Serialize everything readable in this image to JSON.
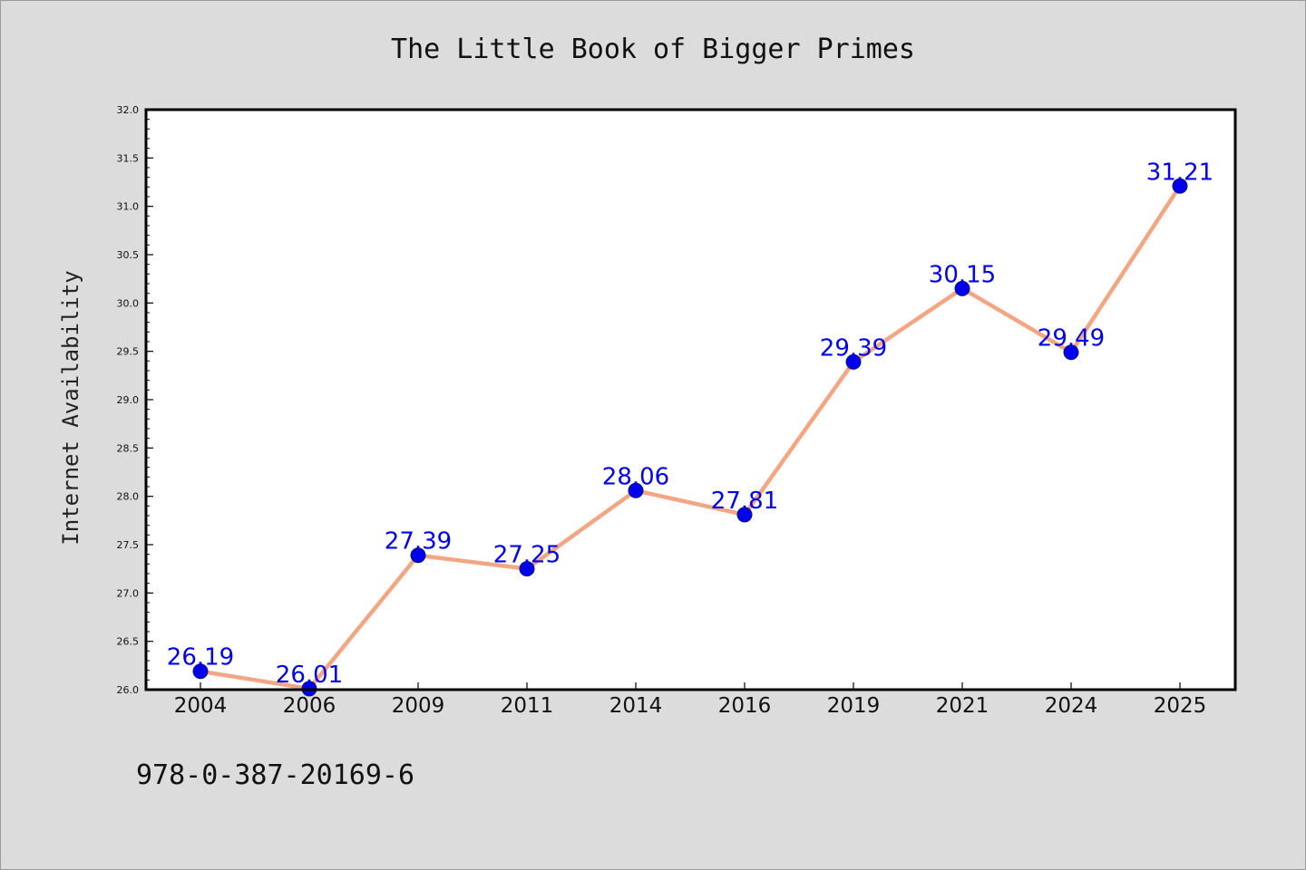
{
  "chart_data": {
    "type": "line",
    "title": "The Little Book of Bigger Primes",
    "xlabel": "",
    "ylabel": "Internet Availability",
    "categories": [
      "2004",
      "2006",
      "2009",
      "2011",
      "2014",
      "2016",
      "2019",
      "2021",
      "2024",
      "2025"
    ],
    "series": [
      {
        "values": [
          26.19,
          26.01,
          27.39,
          27.25,
          28.06,
          27.81,
          29.39,
          30.15,
          29.49,
          31.21
        ],
        "labels": [
          "26.19",
          "26.01",
          "27.39",
          "27.25",
          "28.06",
          "27.81",
          "29.39",
          "30.15",
          "29.49",
          "31.21"
        ],
        "line_color": "#f4a582",
        "marker_color": "#0000ee"
      }
    ],
    "ylim": [
      26.0,
      32.0
    ],
    "yticks": [
      "26.0",
      "26.5",
      "27.0",
      "27.5",
      "28.0",
      "28.5",
      "29.0",
      "29.5",
      "30.0",
      "30.5",
      "31.0",
      "31.5",
      "32.0"
    ],
    "grid": false,
    "legend": "none",
    "annotation": "978-0-387-20169-6"
  }
}
